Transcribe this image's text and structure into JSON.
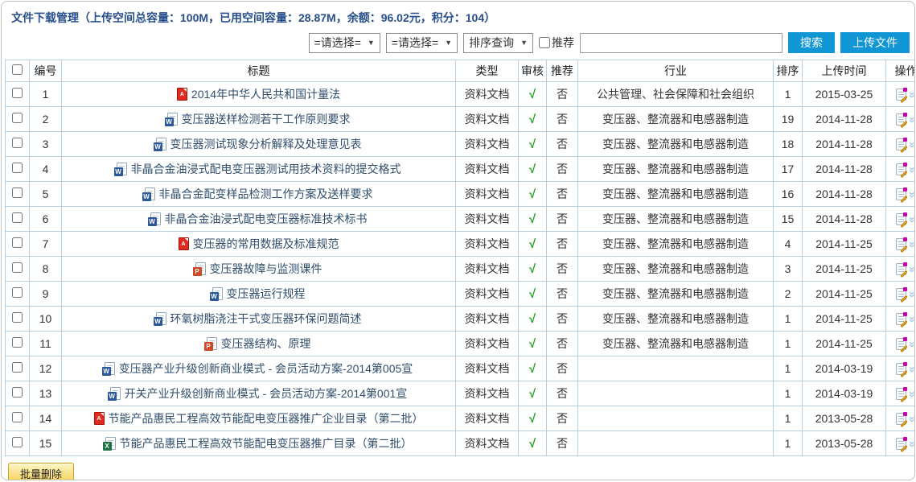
{
  "page": {
    "title": "文件下载管理（上传空间总容量：100M，已用空间容量：28.87M，余额：96.02元，积分：104）"
  },
  "toolbar": {
    "filter_select_1": "=请选择=",
    "filter_select_2": "=请选择=",
    "sort_select": "排序查询",
    "recommend_checkbox_label": "推荐",
    "search_input_value": "",
    "search_button": "搜索",
    "upload_button": "上传文件"
  },
  "table": {
    "headers": {
      "num": "编号",
      "title": "标题",
      "type": "类型",
      "audit": "审核",
      "recommend": "推荐",
      "industry": "行业",
      "sort": "排序",
      "upload_time": "上传时间",
      "actions": "操作"
    },
    "rows": [
      {
        "num": "1",
        "icon": "pdf",
        "title": "2014年中华人民共和国计量法",
        "type": "资料文档",
        "audit": "√",
        "recommend": "否",
        "industry": "公共管理、社会保障和社会组织",
        "sort": "1",
        "upload_time": "2015-03-25"
      },
      {
        "num": "2",
        "icon": "word",
        "title": "变压器送样检测若干工作原则要求",
        "type": "资料文档",
        "audit": "√",
        "recommend": "否",
        "industry": "变压器、整流器和电感器制造",
        "sort": "19",
        "upload_time": "2014-11-28"
      },
      {
        "num": "3",
        "icon": "word",
        "title": "变压器测试现象分析解释及处理意见表",
        "type": "资料文档",
        "audit": "√",
        "recommend": "否",
        "industry": "变压器、整流器和电感器制造",
        "sort": "18",
        "upload_time": "2014-11-28"
      },
      {
        "num": "4",
        "icon": "word",
        "title": "非晶合金油浸式配电变压器测试用技术资料的提交格式",
        "type": "资料文档",
        "audit": "√",
        "recommend": "否",
        "industry": "变压器、整流器和电感器制造",
        "sort": "17",
        "upload_time": "2014-11-28"
      },
      {
        "num": "5",
        "icon": "word",
        "title": "非晶合金配变样品检测工作方案及送样要求",
        "type": "资料文档",
        "audit": "√",
        "recommend": "否",
        "industry": "变压器、整流器和电感器制造",
        "sort": "16",
        "upload_time": "2014-11-28"
      },
      {
        "num": "6",
        "icon": "word",
        "title": "非晶合金油浸式配电变压器标准技术标书",
        "type": "资料文档",
        "audit": "√",
        "recommend": "否",
        "industry": "变压器、整流器和电感器制造",
        "sort": "15",
        "upload_time": "2014-11-28"
      },
      {
        "num": "7",
        "icon": "pdf",
        "title": "变压器的常用数据及标准规范",
        "type": "资料文档",
        "audit": "√",
        "recommend": "否",
        "industry": "变压器、整流器和电感器制造",
        "sort": "4",
        "upload_time": "2014-11-25"
      },
      {
        "num": "8",
        "icon": "ppt",
        "title": "变压器故障与监测课件",
        "type": "资料文档",
        "audit": "√",
        "recommend": "否",
        "industry": "变压器、整流器和电感器制造",
        "sort": "3",
        "upload_time": "2014-11-25"
      },
      {
        "num": "9",
        "icon": "word",
        "title": "变压器运行规程",
        "type": "资料文档",
        "audit": "√",
        "recommend": "否",
        "industry": "变压器、整流器和电感器制造",
        "sort": "2",
        "upload_time": "2014-11-25"
      },
      {
        "num": "10",
        "icon": "word",
        "title": "环氧树脂浇注干式变压器环保问题简述",
        "type": "资料文档",
        "audit": "√",
        "recommend": "否",
        "industry": "变压器、整流器和电感器制造",
        "sort": "1",
        "upload_time": "2014-11-25"
      },
      {
        "num": "11",
        "icon": "ppt",
        "title": "变压器结构、原理",
        "type": "资料文档",
        "audit": "√",
        "recommend": "否",
        "industry": "变压器、整流器和电感器制造",
        "sort": "1",
        "upload_time": "2014-11-25"
      },
      {
        "num": "12",
        "icon": "word",
        "title": "变压器产业升级创新商业模式 - 会员活动方案-2014第005宣",
        "type": "资料文档",
        "audit": "√",
        "recommend": "否",
        "industry": "",
        "sort": "1",
        "upload_time": "2014-03-19"
      },
      {
        "num": "13",
        "icon": "word",
        "title": "开关产业升级创新商业模式 - 会员活动方案-2014第001宣",
        "type": "资料文档",
        "audit": "√",
        "recommend": "否",
        "industry": "",
        "sort": "1",
        "upload_time": "2014-03-19"
      },
      {
        "num": "14",
        "icon": "pdf",
        "title": "节能产品惠民工程高效节能配电变压器推广企业目录（第二批）",
        "type": "资料文档",
        "audit": "√",
        "recommend": "否",
        "industry": "",
        "sort": "1",
        "upload_time": "2013-05-28"
      },
      {
        "num": "15",
        "icon": "excel",
        "title": "节能产品惠民工程高效节能配电变压器推广目录（第二批）",
        "type": "资料文档",
        "audit": "√",
        "recommend": "否",
        "industry": "",
        "sort": "1",
        "upload_time": "2013-05-28"
      }
    ]
  },
  "footer": {
    "batch_delete_button": "批量删除"
  },
  "icons": {
    "select_caret": "chevron-down-icon",
    "file_type_badges": {
      "pdf": "A",
      "word": "W",
      "ppt": "P",
      "excel": "X"
    },
    "action_edit": "edit-icon",
    "action_expand": "expand-chevron-icon"
  },
  "colors": {
    "title_navy": "#274f8e",
    "button_blue": "#1095d5",
    "table_border_blue": "#b5d1e8",
    "audit_check_green": "#1b9e1b",
    "link_navy": "#2f4e6f",
    "batch_button_gold_border": "#c9a227",
    "icon_pdf_red": "#e02b20",
    "icon_word_blue": "#2b579a",
    "icon_ppt_orange": "#d04727",
    "icon_excel_green": "#217346",
    "edit_pen_orange": "#e89b00",
    "expand_chevron_blue": "#a9c9ea"
  }
}
